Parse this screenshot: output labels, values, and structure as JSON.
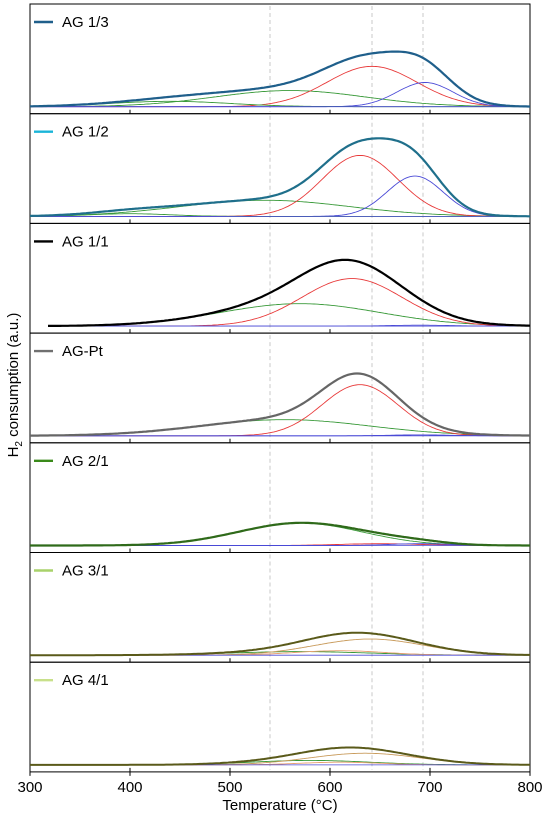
{
  "chart_data": {
    "type": "line",
    "xlabel": "Temperature (°C)",
    "ylabel_main": "H",
    "ylabel_sub": "2",
    "ylabel_rest": " consumption (a.u.)",
    "xlim": [
      300,
      800
    ],
    "xticks": [
      "300",
      "400",
      "500",
      "600",
      "700",
      "800"
    ],
    "reference_lines_x": [
      540,
      642,
      693
    ],
    "panels": [
      {
        "label": "AG 1/3",
        "legend_color": "#1f5f8b",
        "baseline": 0.0,
        "x_start": 300,
        "total": {
          "color": "#1f5f8b",
          "width": 2.2
        },
        "components": [
          {
            "color": "#3a9a3a",
            "center": 560,
            "amp": 0.18,
            "sigma": 75
          },
          {
            "color": "#e83a3a",
            "center": 642,
            "amp": 0.45,
            "sigma": 45
          },
          {
            "color": "#4a4ad6",
            "center": 695,
            "amp": 0.27,
            "sigma": 28
          },
          {
            "color": "#3a9a3a",
            "center": 440,
            "amp": 0.06,
            "sigma": 60
          }
        ]
      },
      {
        "label": "AG 1/2",
        "legend_color": "#1ab4d8",
        "baseline": 0.0,
        "x_start": 300,
        "total": {
          "color": "#1f6f8b",
          "width": 2.2
        },
        "components": [
          {
            "color": "#3a9a3a",
            "center": 535,
            "amp": 0.18,
            "sigma": 85
          },
          {
            "color": "#e83a3a",
            "center": 630,
            "amp": 0.68,
            "sigma": 38
          },
          {
            "color": "#4a4ad6",
            "center": 685,
            "amp": 0.45,
            "sigma": 28
          },
          {
            "color": "#3a9a3a",
            "center": 400,
            "amp": 0.03,
            "sigma": 40
          }
        ]
      },
      {
        "label": "AG 1/1",
        "legend_color": "#000000",
        "baseline": 0.0,
        "x_start": 318,
        "total": {
          "color": "#000000",
          "width": 2.2
        },
        "components": [
          {
            "color": "#3a9a3a",
            "center": 570,
            "amp": 0.25,
            "sigma": 80
          },
          {
            "color": "#e83a3a",
            "center": 622,
            "amp": 0.53,
            "sigma": 50
          },
          {
            "color": "#4a4ad6",
            "center": 690,
            "amp": 0.01,
            "sigma": 30
          }
        ]
      },
      {
        "label": "AG-Pt",
        "legend_color": "#707070",
        "baseline": 0.0,
        "x_start": 300,
        "total": {
          "color": "#666666",
          "width": 2.2
        },
        "components": [
          {
            "color": "#3a9a3a",
            "center": 555,
            "amp": 0.18,
            "sigma": 85
          },
          {
            "color": "#e83a3a",
            "center": 630,
            "amp": 0.57,
            "sigma": 38
          },
          {
            "color": "#4a4ad6",
            "center": 690,
            "amp": 0.01,
            "sigma": 30
          }
        ]
      },
      {
        "label": "AG 2/1",
        "legend_color": "#3a8a1a",
        "baseline": 0.0,
        "x_start": 300,
        "total": {
          "color": "#2f6a1a",
          "width": 2.2
        },
        "components": [
          {
            "color": "#3a9a3a",
            "center": 570,
            "amp": 0.25,
            "sigma": 62
          },
          {
            "color": "#e83a3a",
            "center": 650,
            "amp": 0.02,
            "sigma": 40
          },
          {
            "color": "#4a4ad6",
            "center": 690,
            "amp": 0.02,
            "sigma": 30
          }
        ]
      },
      {
        "label": "AG 3/1",
        "legend_color": "#a8d26a",
        "baseline": 0.0,
        "x_start": 300,
        "total": {
          "color": "#5a5a1a",
          "width": 2.0
        },
        "components": [
          {
            "color": "#3a9a3a",
            "center": 570,
            "amp": 0.04,
            "sigma": 70
          },
          {
            "color": "#c89a5a",
            "center": 640,
            "amp": 0.18,
            "sigma": 55
          },
          {
            "color": "#e8a070",
            "center": 610,
            "amp": 0.05,
            "sigma": 45
          }
        ]
      },
      {
        "label": "AG 4/1",
        "legend_color": "#c8e08a",
        "baseline": 0.0,
        "x_start": 300,
        "total": {
          "color": "#5a5a1a",
          "width": 2.0
        },
        "components": [
          {
            "color": "#3a9a3a",
            "center": 580,
            "amp": 0.05,
            "sigma": 60
          },
          {
            "color": "#c89a5a",
            "center": 635,
            "amp": 0.13,
            "sigma": 55
          },
          {
            "color": "#e8a070",
            "center": 610,
            "amp": 0.03,
            "sigma": 40
          }
        ]
      }
    ]
  }
}
